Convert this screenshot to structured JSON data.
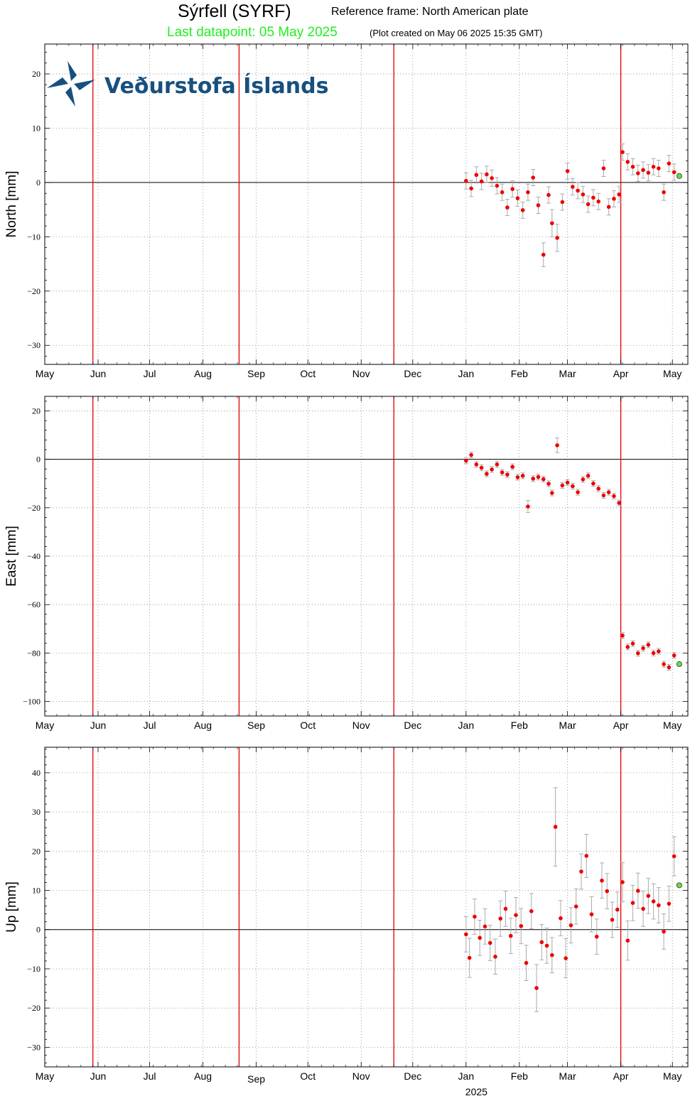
{
  "header": {
    "title": "Sýrfell (SYRF)",
    "reference_frame": "Reference frame: North American plate",
    "last_datapoint": "Last datapoint: 05 May 2025",
    "plot_created": "(Plot created on May 06 2025 15:35 GMT)"
  },
  "logo": {
    "text": "Veðurstofa Íslands"
  },
  "colors": {
    "points": "#ee0000",
    "last_point": "#66dd44",
    "event_lines": "#dd0000",
    "errorbars": "#aaaaaa"
  },
  "chart_data": [
    {
      "type": "scatter",
      "ylabel": "North [mm]",
      "ylim": [
        -33.5,
        25.5
      ],
      "yticks": [
        20,
        10,
        0,
        -10,
        -20,
        -30
      ],
      "ytick_labels": [
        "20",
        "10",
        "0",
        "−10",
        "−20",
        "−30"
      ],
      "x_axis": {
        "range": [
          "2024-05-01",
          "2025-05-10"
        ],
        "month_labels": [
          "May",
          "Jun",
          "Jul",
          "Aug",
          "Sep",
          "Oct",
          "Nov",
          "Dec",
          "Jan",
          "Feb",
          "Mar",
          "Apr",
          "May"
        ],
        "year_label": ""
      },
      "event_lines": [
        "2024-05-29",
        "2024-08-22",
        "2024-11-20",
        "2025-04-01"
      ],
      "series": [
        {
          "x": [
            "2025-01-01",
            "2025-01-04",
            "2025-01-07",
            "2025-01-10",
            "2025-01-13",
            "2025-01-16",
            "2025-01-19",
            "2025-01-22",
            "2025-01-25",
            "2025-01-28",
            "2025-01-31",
            "2025-02-03",
            "2025-02-06",
            "2025-02-09",
            "2025-02-12",
            "2025-02-15",
            "2025-02-18",
            "2025-02-20",
            "2025-02-23",
            "2025-02-26",
            "2025-03-01",
            "2025-03-04",
            "2025-03-07",
            "2025-03-10",
            "2025-03-13",
            "2025-03-16",
            "2025-03-19",
            "2025-03-22",
            "2025-03-25",
            "2025-03-28",
            "2025-03-31",
            "2025-04-02",
            "2025-04-05",
            "2025-04-08",
            "2025-04-11",
            "2025-04-14",
            "2025-04-17",
            "2025-04-20",
            "2025-04-23",
            "2025-04-26",
            "2025-04-29",
            "2025-05-02"
          ],
          "y": [
            0.3,
            -1.1,
            1.4,
            0.2,
            1.5,
            0.8,
            -0.6,
            -1.8,
            -4.6,
            -1.2,
            -2.9,
            -5.1,
            -1.8,
            0.9,
            -4.2,
            -13.3,
            -2.3,
            -7.5,
            -10.2,
            -3.6,
            2.1,
            -0.8,
            -1.5,
            -2.2,
            -4.0,
            -2.8,
            -3.5,
            2.6,
            -4.5,
            -3.0,
            -2.2,
            5.6,
            3.8,
            2.9,
            1.7,
            2.3,
            1.8,
            2.9,
            2.6,
            -1.8,
            3.5,
            1.9
          ],
          "err": [
            1.5,
            1.5,
            1.5,
            1.5,
            1.5,
            1.5,
            1.5,
            1.5,
            1.5,
            1.5,
            1.5,
            1.5,
            1.5,
            1.5,
            1.5,
            2.2,
            1.5,
            2.5,
            2.5,
            1.5,
            1.5,
            1.5,
            1.5,
            1.5,
            1.5,
            1.5,
            1.5,
            1.5,
            1.5,
            1.5,
            1.5,
            1.5,
            1.5,
            1.5,
            1.5,
            1.5,
            1.5,
            1.5,
            1.5,
            1.5,
            1.5,
            1.5
          ]
        }
      ],
      "last_point": {
        "x": "2025-05-05",
        "y": 1.2
      }
    },
    {
      "type": "scatter",
      "ylabel": "East [mm]",
      "ylim": [
        -106,
        26
      ],
      "yticks": [
        20,
        0,
        -20,
        -40,
        -60,
        -80,
        -100
      ],
      "ytick_labels": [
        "20",
        "0",
        "−20",
        "−40",
        "−60",
        "−80",
        "−100"
      ],
      "x_axis": {
        "range": [
          "2024-05-01",
          "2025-05-10"
        ],
        "month_labels": [
          "May",
          "Jun",
          "Jul",
          "Aug",
          "Sep",
          "Oct",
          "Nov",
          "Dec",
          "Jan",
          "Feb",
          "Mar",
          "Apr",
          "May"
        ],
        "year_label": ""
      },
      "event_lines": [
        "2024-05-29",
        "2024-08-22",
        "2024-11-20",
        "2025-04-01"
      ],
      "series": [
        {
          "x": [
            "2025-01-01",
            "2025-01-04",
            "2025-01-07",
            "2025-01-10",
            "2025-01-13",
            "2025-01-16",
            "2025-01-19",
            "2025-01-22",
            "2025-01-25",
            "2025-01-28",
            "2025-01-31",
            "2025-02-03",
            "2025-02-06",
            "2025-02-09",
            "2025-02-12",
            "2025-02-15",
            "2025-02-18",
            "2025-02-20",
            "2025-02-23",
            "2025-02-26",
            "2025-03-01",
            "2025-03-04",
            "2025-03-07",
            "2025-03-10",
            "2025-03-13",
            "2025-03-16",
            "2025-03-19",
            "2025-03-22",
            "2025-03-25",
            "2025-03-28",
            "2025-03-31",
            "2025-04-02",
            "2025-04-05",
            "2025-04-08",
            "2025-04-11",
            "2025-04-14",
            "2025-04-17",
            "2025-04-20",
            "2025-04-23",
            "2025-04-26",
            "2025-04-29",
            "2025-05-02"
          ],
          "y": [
            -0.6,
            1.8,
            -2.1,
            -3.5,
            -6.0,
            -4.2,
            -2.1,
            -5.4,
            -6.3,
            -3.1,
            -7.4,
            -6.8,
            -19.5,
            -8.0,
            -7.3,
            -8.2,
            -10.1,
            -13.9,
            5.8,
            -10.8,
            -9.6,
            -11.1,
            -13.6,
            -8.3,
            -6.8,
            -10.0,
            -12.1,
            -14.9,
            -13.6,
            -15.2,
            -18.0,
            -72.8,
            -77.5,
            -76.1,
            -80.1,
            -78.0,
            -76.6,
            -80.0,
            -79.3,
            -84.6,
            -85.9,
            -81.0
          ],
          "err": [
            1.2,
            1.2,
            1.2,
            1.2,
            1.2,
            1.2,
            1.2,
            1.2,
            1.2,
            1.2,
            1.2,
            1.2,
            2.5,
            1.2,
            1.2,
            1.2,
            1.2,
            1.2,
            3.0,
            1.2,
            1.2,
            1.2,
            1.2,
            1.2,
            1.2,
            1.2,
            1.2,
            1.2,
            1.2,
            1.2,
            1.2,
            1.2,
            1.2,
            1.2,
            1.2,
            1.2,
            1.2,
            1.2,
            1.2,
            1.2,
            1.2,
            1.2
          ]
        }
      ],
      "last_point": {
        "x": "2025-05-05",
        "y": -84.6
      }
    },
    {
      "type": "scatter",
      "ylabel": "Up [mm]",
      "ylim": [
        -35,
        46.5
      ],
      "yticks": [
        40,
        30,
        20,
        10,
        0,
        -10,
        -20,
        -30
      ],
      "ytick_labels": [
        "40",
        "30",
        "20",
        "10",
        "0",
        "−10",
        "−20",
        "−30"
      ],
      "x_axis": {
        "range": [
          "2024-05-01",
          "2025-05-10"
        ],
        "month_labels": [
          "May",
          "Jun",
          "Jul",
          "Aug",
          "Sep",
          "Oct",
          "Nov",
          "Dec",
          "Jan",
          "Feb",
          "Mar",
          "Apr",
          "May"
        ],
        "year_label": "2025"
      },
      "event_lines": [
        "2024-05-29",
        "2024-08-22",
        "2024-11-20",
        "2025-04-01"
      ],
      "series": [
        {
          "x": [
            "2025-01-01",
            "2025-01-03",
            "2025-01-06",
            "2025-01-09",
            "2025-01-12",
            "2025-01-15",
            "2025-01-18",
            "2025-01-21",
            "2025-01-24",
            "2025-01-27",
            "2025-01-30",
            "2025-02-02",
            "2025-02-05",
            "2025-02-08",
            "2025-02-11",
            "2025-02-14",
            "2025-02-17",
            "2025-02-20",
            "2025-02-22",
            "2025-02-25",
            "2025-02-28",
            "2025-03-03",
            "2025-03-06",
            "2025-03-09",
            "2025-03-12",
            "2025-03-15",
            "2025-03-18",
            "2025-03-21",
            "2025-03-24",
            "2025-03-27",
            "2025-03-30",
            "2025-04-02",
            "2025-04-05",
            "2025-04-08",
            "2025-04-11",
            "2025-04-14",
            "2025-04-17",
            "2025-04-20",
            "2025-04-23",
            "2025-04-26",
            "2025-04-29",
            "2025-05-02"
          ],
          "y": [
            -1.2,
            -7.2,
            3.3,
            -2.1,
            0.8,
            -3.4,
            -6.9,
            2.8,
            5.3,
            -1.6,
            3.7,
            0.9,
            -8.5,
            4.7,
            -14.9,
            -3.2,
            -4.1,
            -6.5,
            26.2,
            2.9,
            -7.3,
            1.1,
            5.9,
            14.8,
            18.8,
            3.9,
            -1.8,
            12.5,
            9.8,
            2.5,
            5.1,
            12.1,
            -2.8,
            6.8,
            9.9,
            5.3,
            8.6,
            7.2,
            6.2,
            -0.5,
            6.6,
            18.7
          ],
          "err": [
            4.5,
            5.0,
            4.5,
            4.5,
            4.5,
            4.5,
            4.5,
            4.5,
            4.5,
            4.5,
            4.5,
            4.5,
            4.5,
            4.5,
            6.0,
            4.5,
            4.5,
            4.5,
            10.0,
            4.5,
            5.0,
            4.5,
            4.5,
            4.5,
            5.5,
            4.5,
            4.5,
            4.5,
            4.5,
            4.5,
            4.5,
            5.0,
            5.0,
            4.5,
            4.5,
            4.5,
            4.5,
            4.5,
            4.5,
            4.5,
            4.5,
            5.0
          ]
        }
      ],
      "last_point": {
        "x": "2025-05-05",
        "y": 11.3
      }
    }
  ]
}
